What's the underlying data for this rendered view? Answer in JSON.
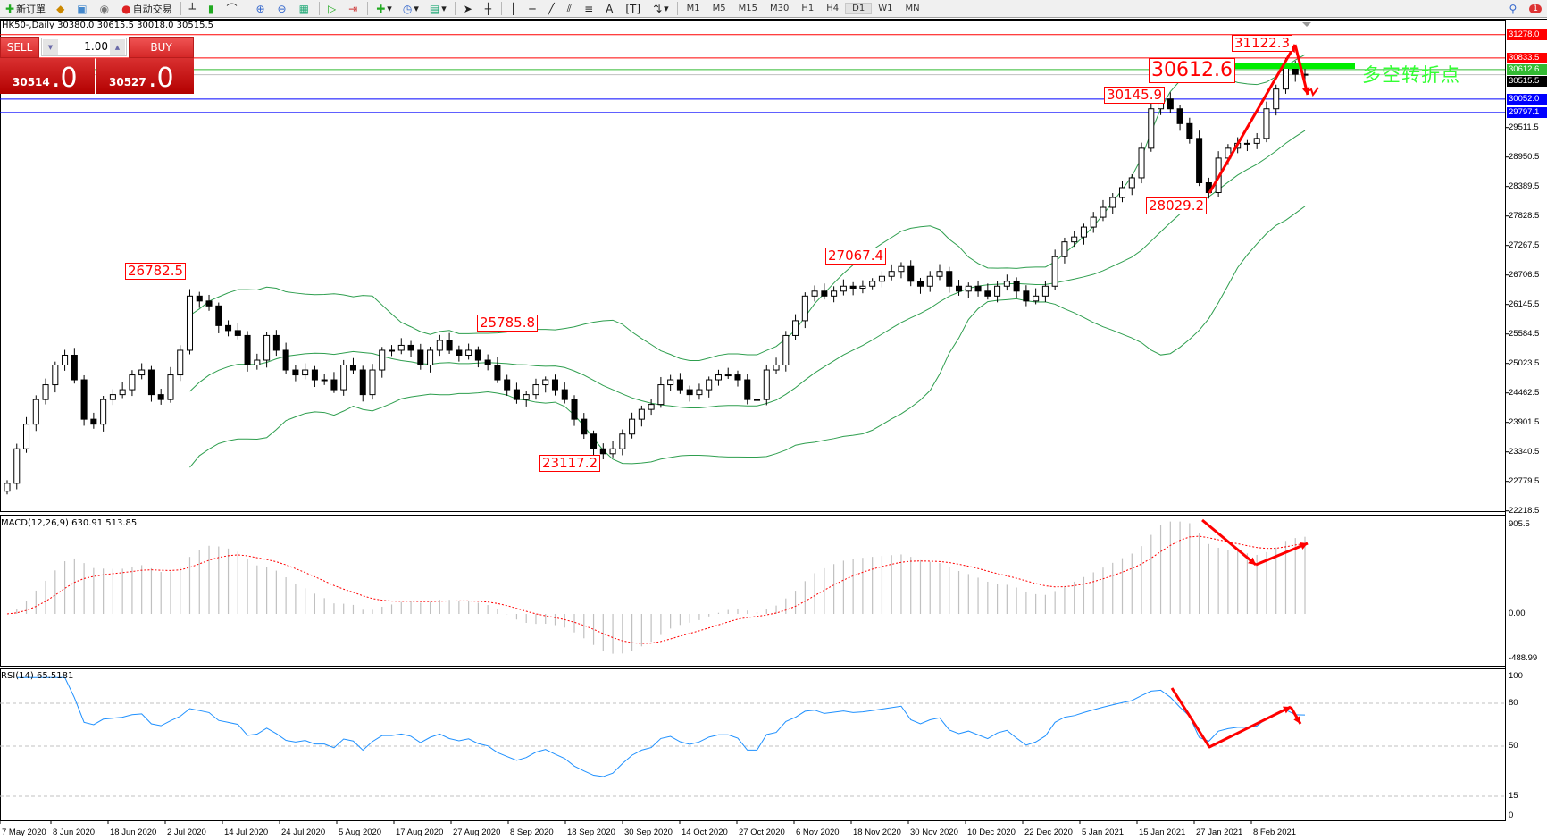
{
  "toolbar": {
    "new_order": "新订單",
    "auto_trading": "自动交易",
    "timeframes": [
      "M1",
      "M5",
      "M15",
      "M30",
      "H1",
      "H4",
      "D1",
      "W1",
      "MN"
    ],
    "active_timeframe": "D1",
    "notification_count": "1"
  },
  "header": {
    "text": "HK50-,Daily  30380.0 30615.5 30018.0 30515.5"
  },
  "trade_panel": {
    "sell_label": "SELL",
    "buy_label": "BUY",
    "lot": "1.00",
    "sell_price_small": "30514",
    "sell_price_big": ".0",
    "buy_price_small": "30527",
    "buy_price_big": ".0"
  },
  "annotations": {
    "labels": [
      "26782.5",
      "25785.8",
      "23117.2",
      "27067.4",
      "30145.9",
      "28029.2",
      "30612.6",
      "31122.3"
    ],
    "pivot_text": "多空转折点"
  },
  "levels": [
    {
      "value": "31278.0",
      "color": "#ff0000"
    },
    {
      "value": "30833.5",
      "color": "#ff0000"
    },
    {
      "value": "30612.6",
      "color": "#33bb33"
    },
    {
      "value": "30515.5",
      "color": "#000000"
    },
    {
      "value": "30052.0",
      "color": "#0000ff"
    },
    {
      "value": "29797.1",
      "color": "#0000ff"
    }
  ],
  "price_axis": [
    "29511.5",
    "28950.5",
    "28389.5",
    "27828.5",
    "27267.5",
    "26706.5",
    "26145.5",
    "25584.5",
    "25023.5",
    "24462.5",
    "23901.5",
    "23340.5",
    "22779.5",
    "22218.5"
  ],
  "macd": {
    "label": "MACD(12,26,9) 630.91 513.85",
    "axis": [
      "905.5",
      "0.00",
      "-488.99"
    ]
  },
  "rsi": {
    "label": "RSI(14) 65.5181",
    "axis": [
      "100",
      "80",
      "50",
      "15",
      "0"
    ],
    "levels": [
      80,
      50,
      15
    ]
  },
  "dates": [
    "7 May 2020",
    "8 Jun 2020",
    "18 Jun 2020",
    "2 Jul 2020",
    "14 Jul 2020",
    "24 Jul 2020",
    "5 Aug 2020",
    "17 Aug 2020",
    "27 Aug 2020",
    "8 Sep 2020",
    "18 Sep 2020",
    "30 Sep 2020",
    "14 Oct 2020",
    "27 Oct 2020",
    "6 Nov 2020",
    "18 Nov 2020",
    "30 Nov 2020",
    "10 Dec 2020",
    "22 Dec 2020",
    "5 Jan 2021",
    "15 Jan 2021",
    "27 Jan 2021",
    "8 Feb 2021"
  ],
  "chart_data": {
    "type": "candlestick",
    "symbol": "HK50-",
    "timeframe": "Daily",
    "ylim": [
      22218.5,
      31278.0
    ],
    "indicators": [
      "Bollinger Bands",
      "MACD(12,26,9)",
      "RSI(14)"
    ],
    "closes": [
      22743,
      23399,
      23868,
      24336,
      24618,
      24993,
      25180,
      24712,
      23962,
      23868,
      24336,
      24430,
      24524,
      24805,
      24899,
      24430,
      24336,
      24805,
      25274,
      26305,
      26211,
      26118,
      25743,
      25649,
      25555,
      24993,
      25086,
      25555,
      25274,
      24899,
      24805,
      24899,
      24712,
      24712,
      24524,
      24993,
      24899,
      24430,
      24899,
      25274,
      25274,
      25368,
      25274,
      24993,
      25274,
      25461,
      25274,
      25180,
      25274,
      25086,
      24993,
      24712,
      24524,
      24336,
      24430,
      24618,
      24712,
      24524,
      24336,
      23962,
      23680,
      23399,
      23305,
      23399,
      23680,
      23962,
      24149,
      24243,
      24618,
      24712,
      24524,
      24430,
      24524,
      24712,
      24805,
      24805,
      24712,
      24336,
      24336,
      24899,
      24993,
      25555,
      25836,
      26305,
      26399,
      26305,
      26399,
      26493,
      26455,
      26493,
      26586,
      26680,
      26774,
      26868,
      26586,
      26493,
      26680,
      26774,
      26493,
      26399,
      26493,
      26399,
      26305,
      26493,
      26586,
      26399,
      26211,
      26305,
      26493,
      27055,
      27336,
      27430,
      27618,
      27805,
      27993,
      28180,
      28368,
      28555,
      29118,
      29868,
      30055,
      29868,
      29586,
      29305,
      28461,
      28274,
      28930,
      29118,
      29211,
      29211,
      29305,
      29868,
      30243,
      30712,
      30524,
      30515.5
    ],
    "colors": {
      "bands": "#2e9e4e",
      "macd_hist": "#c0c0c0",
      "macd_signal": "#ff0000",
      "rsi": "#1e90ff",
      "arrows": "#ff0000"
    }
  }
}
